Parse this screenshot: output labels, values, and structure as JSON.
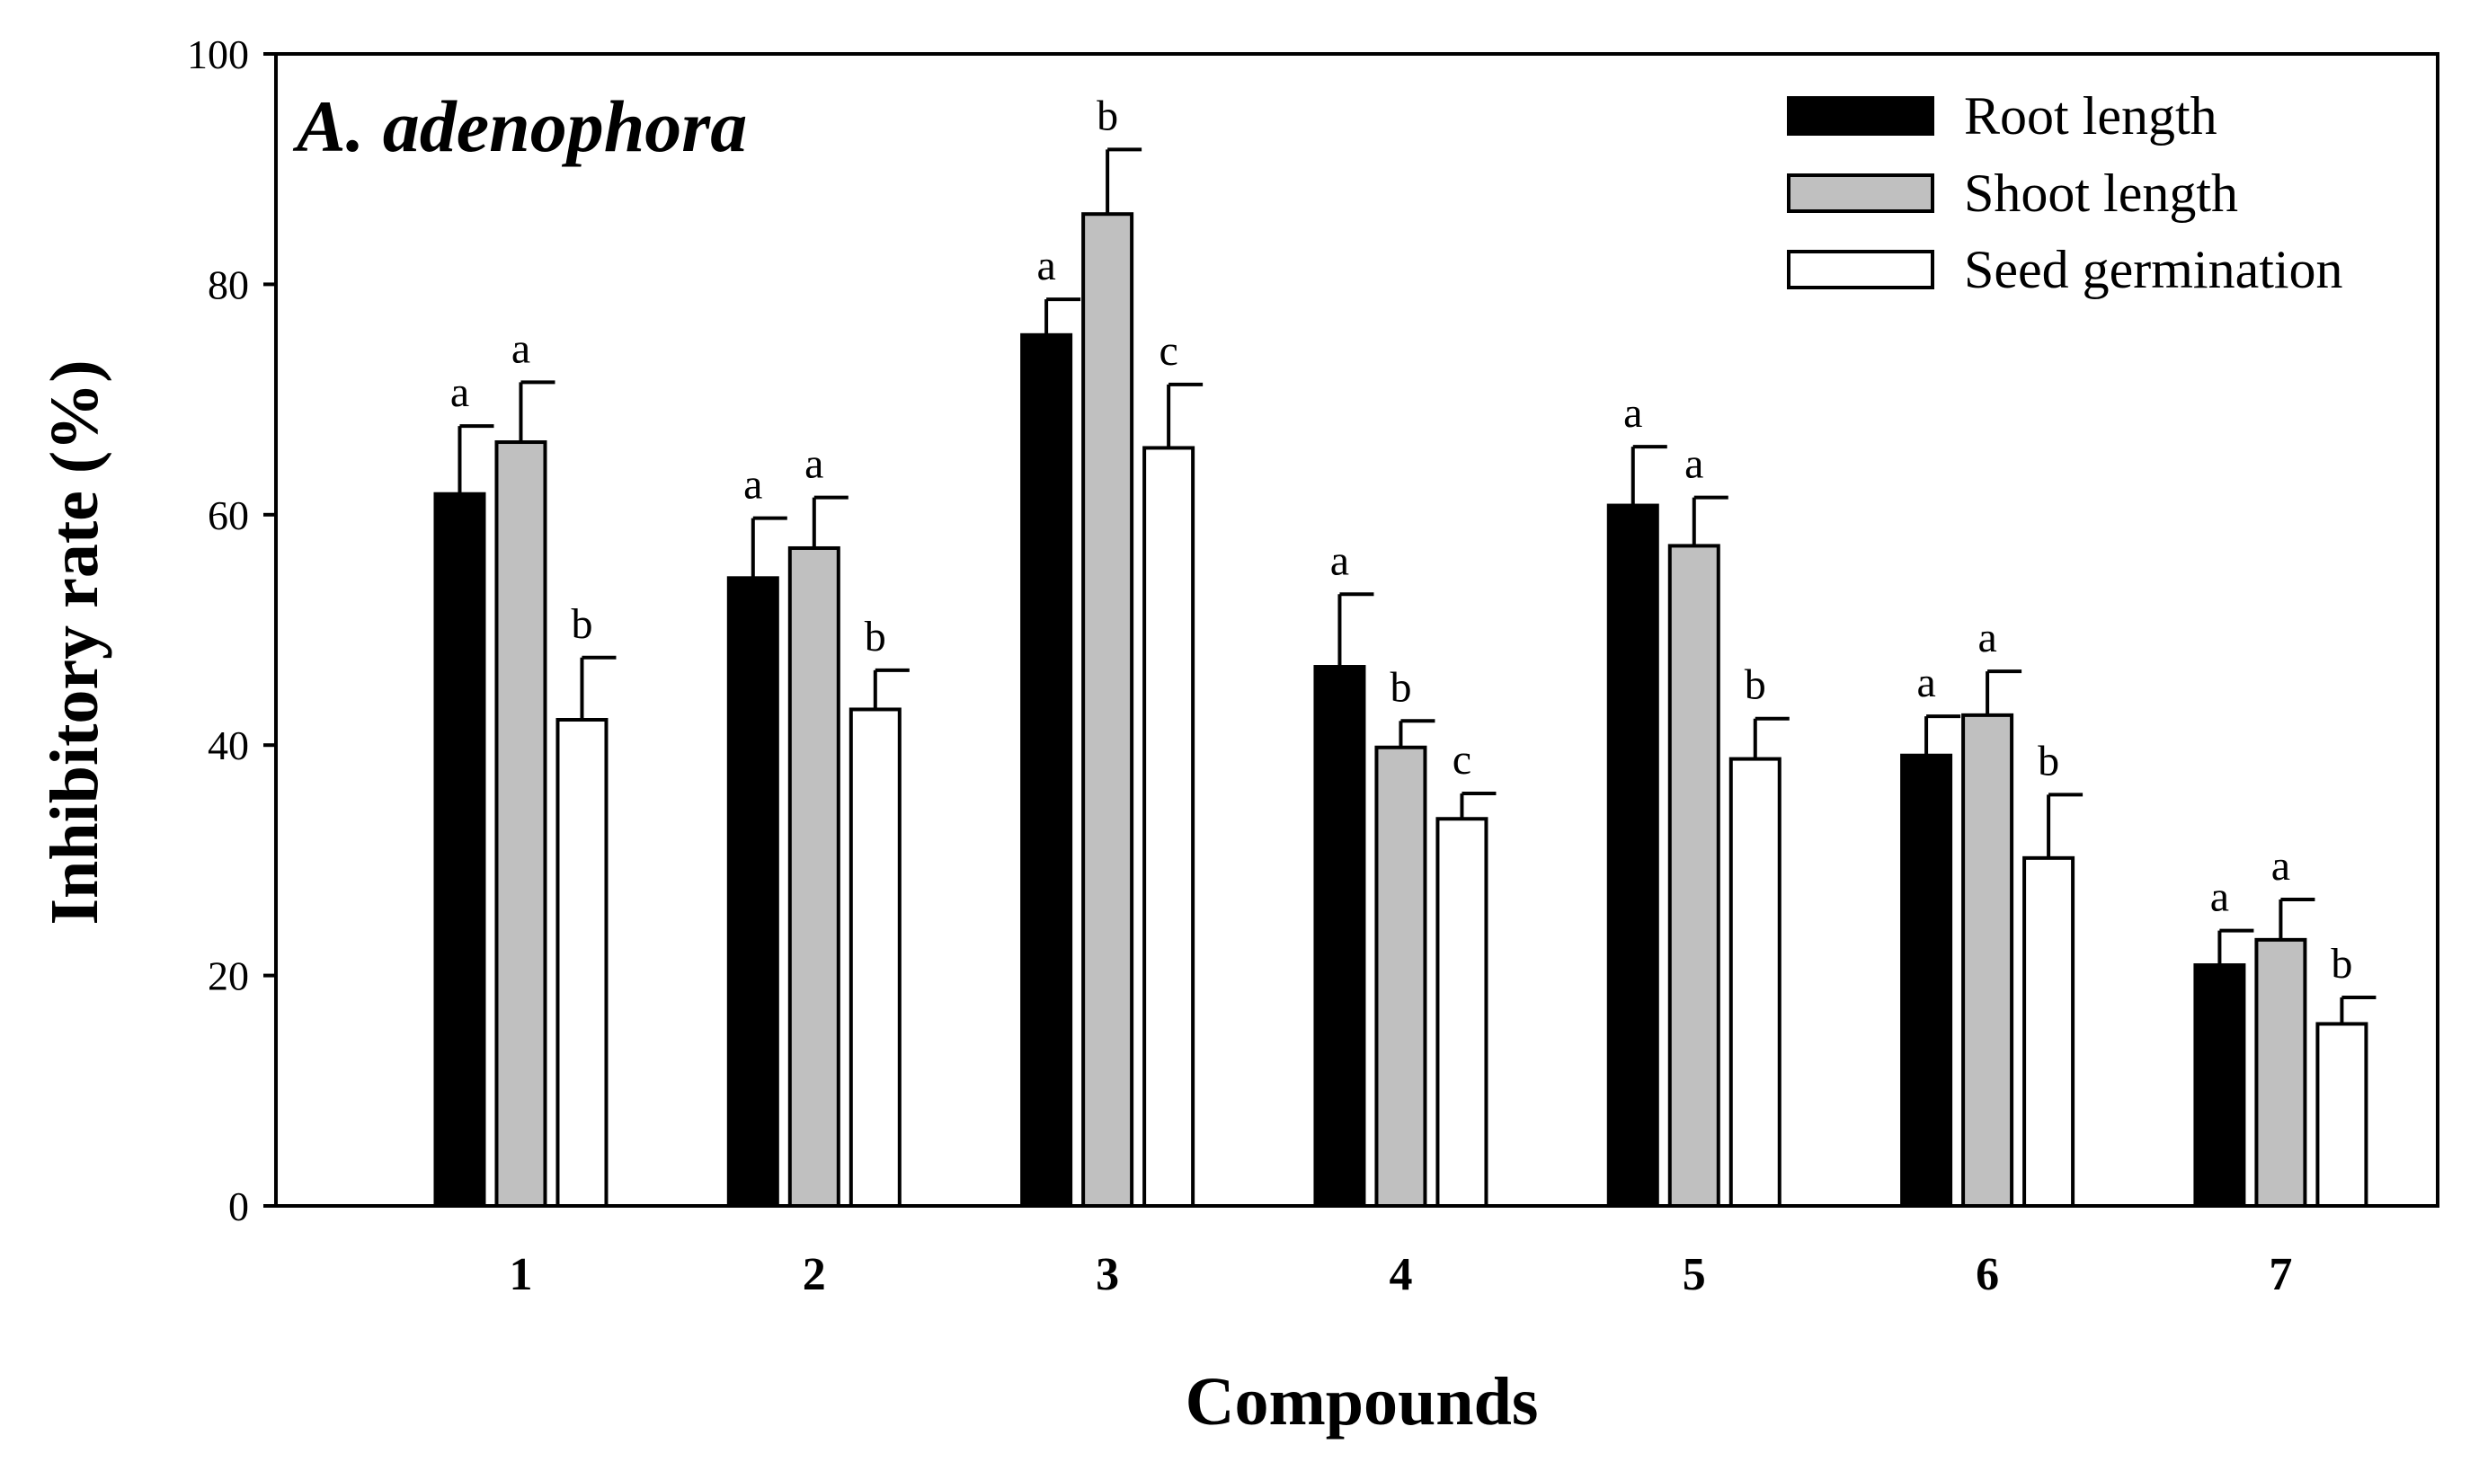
{
  "chart_data": {
    "type": "bar",
    "title": "A. adenophora",
    "xlabel": "Compounds",
    "ylabel": "Inhibitory rate (%)",
    "ylim": [
      0,
      100
    ],
    "yticks": [
      "0",
      "20",
      "40",
      "60",
      "80",
      "100"
    ],
    "categories": [
      "1",
      "2",
      "3",
      "4",
      "5",
      "6",
      "7"
    ],
    "legend_position": "top-right",
    "series": [
      {
        "name": "Root length",
        "color": "#000000",
        "values": [
          61.8,
          54.5,
          75.6,
          46.8,
          60.8,
          39.1,
          20.9
        ],
        "errors": [
          5.9,
          5.2,
          3.1,
          6.3,
          5.1,
          3.4,
          3.0
        ],
        "letters": [
          "a",
          "a",
          "a",
          "a",
          "a",
          "a",
          "a"
        ]
      },
      {
        "name": "Shoot length",
        "color": "#c0c0c0",
        "values": [
          66.3,
          57.1,
          86.1,
          39.8,
          57.3,
          42.6,
          23.1
        ],
        "errors": [
          5.2,
          4.4,
          5.6,
          2.3,
          4.2,
          3.8,
          3.5
        ],
        "letters": [
          "a",
          "a",
          "b",
          "b",
          "a",
          "a",
          "a"
        ]
      },
      {
        "name": "Seed germination",
        "color": "#ffffff",
        "values": [
          42.2,
          43.1,
          65.8,
          33.6,
          38.8,
          30.2,
          15.8
        ],
        "errors": [
          5.4,
          3.4,
          5.5,
          2.2,
          3.5,
          5.5,
          2.3
        ],
        "letters": [
          "b",
          "b",
          "c",
          "c",
          "b",
          "b",
          "b"
        ]
      }
    ]
  }
}
